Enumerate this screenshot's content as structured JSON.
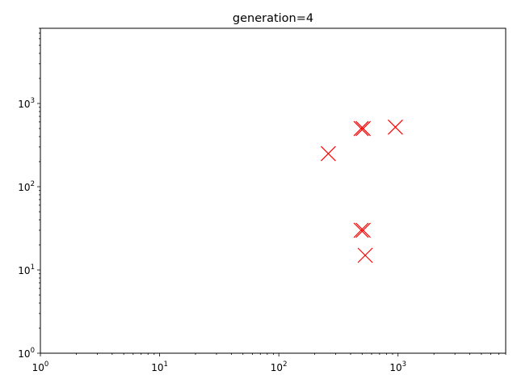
{
  "chart_data": {
    "type": "scatter",
    "title": "generation=4",
    "xlabel": "",
    "ylabel": "",
    "xscale": "log",
    "yscale": "log",
    "xlim": [
      1,
      8000
    ],
    "ylim": [
      1,
      8000
    ],
    "grid": false,
    "legend": "none",
    "marker": "x",
    "marker_color": "#ff0000",
    "x_ticks": [
      {
        "value": 1,
        "base": "10",
        "exp": "0"
      },
      {
        "value": 10,
        "base": "10",
        "exp": "1"
      },
      {
        "value": 100,
        "base": "10",
        "exp": "2"
      },
      {
        "value": 1000,
        "base": "10",
        "exp": "3"
      }
    ],
    "y_ticks": [
      {
        "value": 1,
        "base": "10",
        "exp": "0"
      },
      {
        "value": 10,
        "base": "10",
        "exp": "1"
      },
      {
        "value": 100,
        "base": "10",
        "exp": "2"
      },
      {
        "value": 1000,
        "base": "10",
        "exp": "3"
      }
    ],
    "points": [
      {
        "x": 490,
        "y": 500
      },
      {
        "x": 510,
        "y": 500
      },
      {
        "x": 950,
        "y": 520
      },
      {
        "x": 260,
        "y": 250
      },
      {
        "x": 490,
        "y": 30
      },
      {
        "x": 510,
        "y": 30
      },
      {
        "x": 530,
        "y": 15
      }
    ]
  }
}
